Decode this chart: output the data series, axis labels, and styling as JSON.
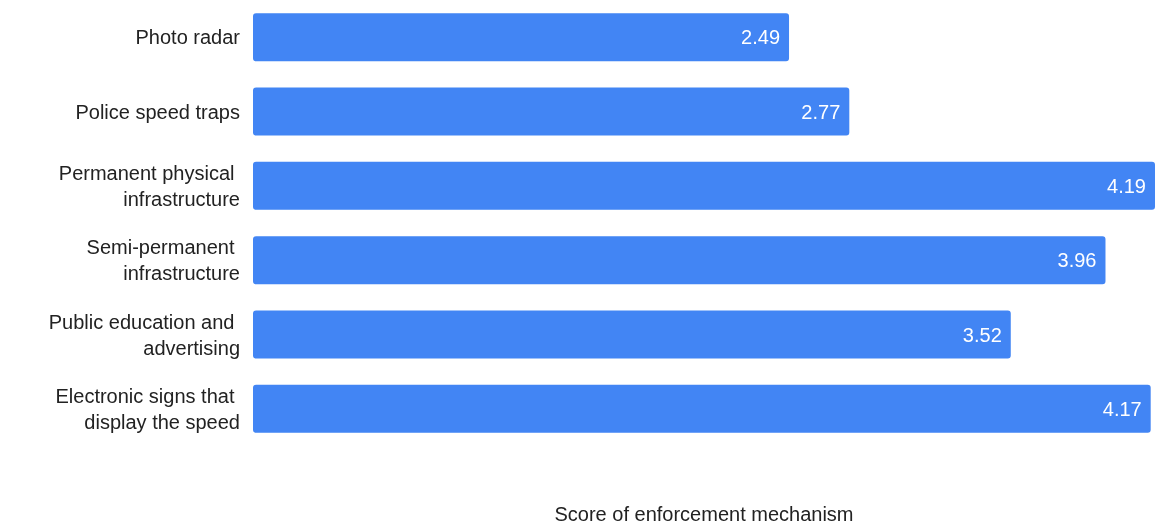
{
  "chart_data": {
    "type": "bar",
    "orientation": "horizontal",
    "xlabel": "Score of enforcement mechanism",
    "categories": [
      "Photo radar",
      "Police speed traps",
      "Permanent physical infrastructure",
      "Semi-permanent infrastructure",
      "Public education and advertising",
      "Electronic signs that display the speed"
    ],
    "values": [
      2.49,
      2.77,
      4.19,
      3.96,
      3.52,
      4.17
    ],
    "color": "#4285f4",
    "data_labels": true
  }
}
